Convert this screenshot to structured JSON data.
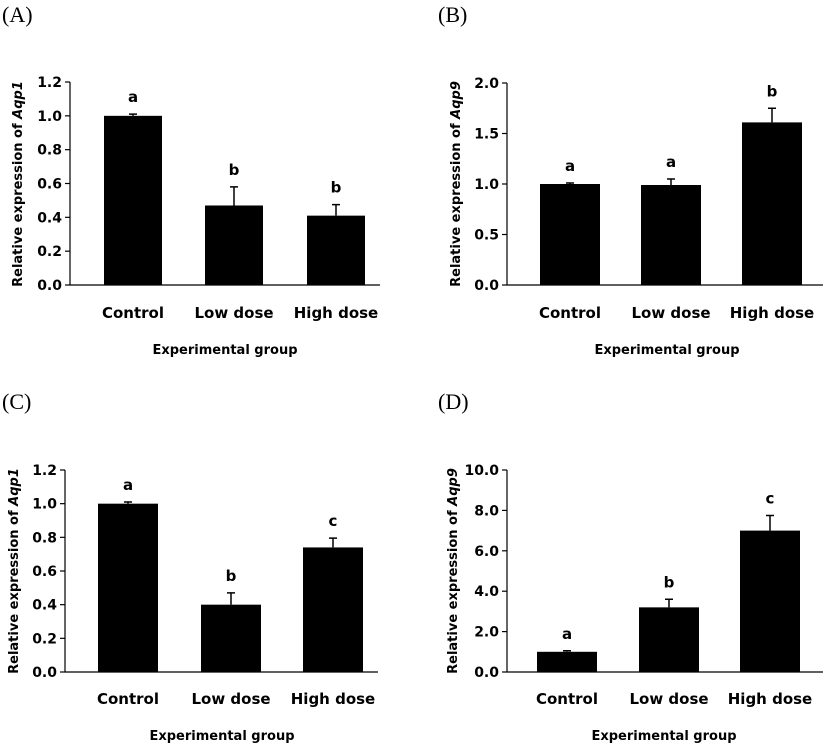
{
  "chart_data": [
    {
      "type": "bar",
      "panel": "(A)",
      "categories": [
        "Control",
        "Low dose",
        "High dose"
      ],
      "values": [
        1.0,
        0.47,
        0.41
      ],
      "errors": [
        0.01,
        0.11,
        0.065
      ],
      "significance": [
        "a",
        "b",
        "b"
      ],
      "ylabel_prefix": "Relative expression of ",
      "ylabel_gene": "Aqp1",
      "xlabel": "Experimental group",
      "ylim": [
        0,
        1.2
      ],
      "yticks": [
        "0.0",
        "0.2",
        "0.4",
        "0.6",
        "0.8",
        "1.0",
        "1.2"
      ],
      "grid": false,
      "colors": {
        "bar": "#000000"
      }
    },
    {
      "type": "bar",
      "panel": "(B)",
      "categories": [
        "Control",
        "Low dose",
        "High dose"
      ],
      "values": [
        1.0,
        0.99,
        1.61
      ],
      "errors": [
        0.01,
        0.06,
        0.14
      ],
      "significance": [
        "a",
        "a",
        "b"
      ],
      "ylabel_prefix": "Relative expression of ",
      "ylabel_gene": "Aqp9",
      "xlabel": "Experimental group",
      "ylim": [
        0,
        2.0
      ],
      "yticks": [
        "0.0",
        "0.5",
        "1.0",
        "1.5",
        "2.0"
      ],
      "grid": false,
      "colors": {
        "bar": "#000000"
      }
    },
    {
      "type": "bar",
      "panel": "(C)",
      "categories": [
        "Control",
        "Low dose",
        "High dose"
      ],
      "values": [
        1.0,
        0.4,
        0.74
      ],
      "errors": [
        0.01,
        0.07,
        0.055
      ],
      "significance": [
        "a",
        "b",
        "c"
      ],
      "ylabel_prefix": "Relative expression of ",
      "ylabel_gene": "Aqp1",
      "xlabel": "Experimental group",
      "ylim": [
        0,
        1.2
      ],
      "yticks": [
        "0.0",
        "0.2",
        "0.4",
        "0.6",
        "0.8",
        "1.0",
        "1.2"
      ],
      "grid": false,
      "colors": {
        "bar": "#000000"
      }
    },
    {
      "type": "bar",
      "panel": "(D)",
      "categories": [
        "Control",
        "Low dose",
        "High dose"
      ],
      "values": [
        1.0,
        3.2,
        7.0
      ],
      "errors": [
        0.05,
        0.4,
        0.75
      ],
      "significance": [
        "a",
        "b",
        "c"
      ],
      "ylabel_prefix": "Relative expression of ",
      "ylabel_gene": "Aqp9",
      "xlabel": "Experimental group",
      "ylim": [
        0,
        10.0
      ],
      "yticks": [
        "0.0",
        "2.0",
        "4.0",
        "6.0",
        "8.0",
        "10.0"
      ],
      "grid": false,
      "colors": {
        "bar": "#000000"
      }
    }
  ]
}
